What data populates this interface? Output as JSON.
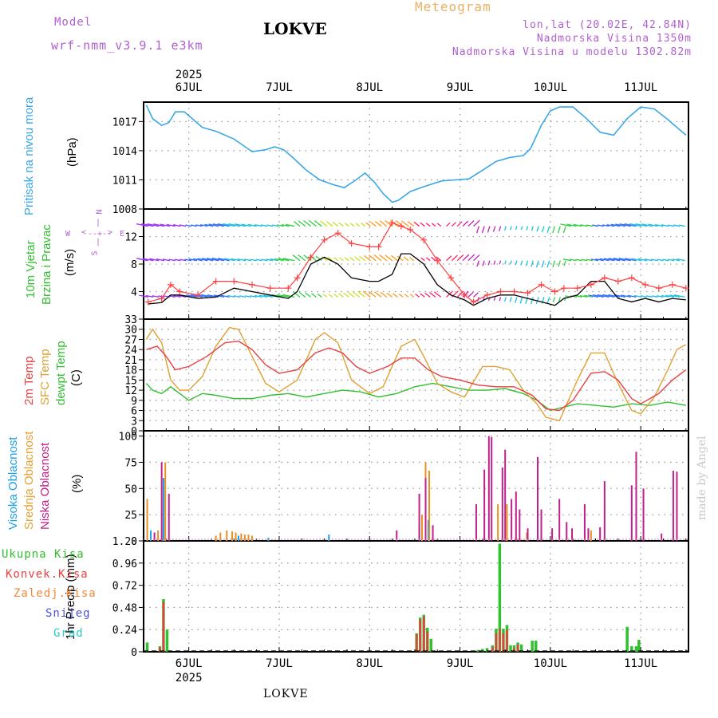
{
  "header": {
    "model_label": "Model",
    "model_name": "wrf-nmm_v3.9.1 e3km",
    "station": "LOKVE",
    "product": "Meteogram",
    "coords": "lon,lat (20.02E, 42.84N)",
    "altitude": "Nadmorska Visina 1350m",
    "model_altitude": "Nadmorska Visina u modelu 1302.82m",
    "watermark": "made by Angel",
    "footer": "LOKVE"
  },
  "axis": {
    "year": "2025",
    "days": [
      "6JUL",
      "7JUL",
      "8JUL",
      "9JUL",
      "10JUL",
      "11JUL"
    ]
  },
  "labels": {
    "pressure": [
      "Pritisak na nivou mora",
      "(hPa)"
    ],
    "wind": [
      "10m Vjetar",
      "Brzina i Pravac",
      "(m/s)"
    ],
    "wind_compass": {
      "n": "N",
      "s": "S",
      "w": "W",
      "e": "E",
      "v": "v",
      "x": "<",
      "y": ">"
    },
    "temp": [
      "2m Temp",
      "SFC Temp",
      "dewpt Temp",
      "(C)"
    ],
    "cloud": [
      "Visoka Oblacnost",
      "Srednja Oblacnost",
      "Niska Oblacnost",
      "(%)"
    ],
    "precip_axis": "1hr Precip (mm)",
    "precip_legend": [
      "Ukupna Kisa",
      "Konvek.Kisa",
      "Zaledj.Kisa",
      "Snijeg",
      "Grad"
    ]
  },
  "colors": {
    "pressure": "#3aa7e8",
    "wind_speed": "#ff4040",
    "gust": "#000000",
    "t2m": "#e84040",
    "tsfc": "#e0a030",
    "dewpt": "#30c030",
    "high_cloud": "#1aa0e8",
    "mid_cloud": "#e89020",
    "low_cloud": "#c0208a",
    "precip_total": "#30c030",
    "precip_conv": "#e84040",
    "precip_freeze": "#f08a3c",
    "precip_snow": "#5050e0",
    "precip_hail": "#30c8c0",
    "purple": "#b060d0"
  },
  "chart_data": [
    {
      "type": "line",
      "name": "pressure",
      "title": "Pritisak na nivou mora (hPa)",
      "x_unit": "day (5.5 = 5 JUL 12h, 6.0 = 6 JUL 00h)",
      "ylim": [
        1008,
        1019
      ],
      "yticks": [
        1008,
        1011,
        1014,
        1017
      ],
      "series": [
        {
          "name": "MSLP",
          "x": [
            5.53,
            5.6,
            5.7,
            5.78,
            5.85,
            5.95,
            6.05,
            6.15,
            6.3,
            6.5,
            6.7,
            6.85,
            6.95,
            7.05,
            7.15,
            7.3,
            7.45,
            7.6,
            7.72,
            7.85,
            7.95,
            8.05,
            8.15,
            8.25,
            8.32,
            8.45,
            8.6,
            8.8,
            8.95,
            9.1,
            9.25,
            9.4,
            9.55,
            9.7,
            9.78,
            9.9,
            10.0,
            10.1,
            10.25,
            10.4,
            10.55,
            10.7,
            10.85,
            11.0,
            11.15,
            11.3,
            11.4,
            11.5
          ],
          "values": [
            1018.7,
            1017.3,
            1016.6,
            1016.9,
            1018.0,
            1018.0,
            1017.2,
            1016.4,
            1016.0,
            1015.2,
            1013.9,
            1014.1,
            1014.4,
            1014.1,
            1013.3,
            1012.0,
            1011.0,
            1010.5,
            1010.2,
            1011.0,
            1011.7,
            1010.8,
            1009.6,
            1008.7,
            1008.9,
            1009.8,
            1010.3,
            1010.9,
            1011.0,
            1011.1,
            1012.0,
            1012.9,
            1013.3,
            1013.5,
            1014.2,
            1016.6,
            1018.1,
            1018.5,
            1018.5,
            1017.3,
            1015.9,
            1015.6,
            1017.3,
            1018.5,
            1018.3,
            1017.2,
            1016.4,
            1015.6
          ]
        }
      ]
    },
    {
      "type": "line",
      "name": "wind",
      "title": "10m Vjetar Brzina i Pravac (m/s)",
      "ylim": [
        0,
        16
      ],
      "yticks": [
        4,
        8,
        12
      ],
      "series": [
        {
          "name": "speed",
          "x": [
            5.55,
            5.7,
            5.8,
            5.9,
            6.1,
            6.3,
            6.5,
            6.7,
            6.9,
            7.1,
            7.2,
            7.35,
            7.5,
            7.65,
            7.8,
            8.0,
            8.1,
            8.25,
            8.35,
            8.45,
            8.6,
            8.75,
            8.9,
            9.05,
            9.15,
            9.3,
            9.45,
            9.6,
            9.75,
            9.9,
            10.05,
            10.15,
            10.3,
            10.45,
            10.6,
            10.75,
            10.9,
            11.05,
            11.2,
            11.35,
            11.5
          ],
          "values": [
            2.5,
            3.0,
            5.0,
            4.0,
            3.5,
            5.5,
            5.5,
            5.0,
            4.5,
            4.5,
            6.0,
            9.0,
            11.5,
            12.5,
            11.0,
            10.5,
            10.5,
            14.0,
            13.5,
            13.0,
            11.5,
            8.5,
            6.0,
            3.5,
            2.5,
            3.5,
            4.0,
            4.0,
            3.8,
            5.0,
            4.0,
            4.5,
            4.5,
            5.0,
            6.0,
            5.5,
            6.0,
            5.0,
            4.5,
            5.0,
            4.5
          ]
        },
        {
          "name": "gust",
          "x": [
            5.55,
            5.7,
            5.8,
            5.9,
            6.1,
            6.3,
            6.5,
            6.7,
            6.9,
            7.1,
            7.2,
            7.35,
            7.5,
            7.65,
            7.8,
            8.0,
            8.1,
            8.25,
            8.35,
            8.45,
            8.6,
            8.75,
            8.9,
            9.05,
            9.15,
            9.3,
            9.45,
            9.6,
            9.75,
            9.9,
            10.05,
            10.15,
            10.3,
            10.45,
            10.6,
            10.75,
            10.9,
            11.05,
            11.2,
            11.35,
            11.5
          ],
          "values": [
            2.2,
            2.4,
            3.5,
            3.5,
            3.0,
            3.2,
            4.5,
            4.0,
            3.5,
            3.0,
            4.0,
            8.0,
            9.0,
            8.0,
            6.0,
            5.5,
            5.5,
            6.5,
            9.5,
            9.5,
            8.0,
            5.0,
            3.5,
            2.8,
            2.0,
            3.0,
            3.5,
            3.5,
            3.0,
            2.5,
            2.0,
            3.0,
            3.5,
            5.5,
            5.5,
            3.0,
            2.5,
            3.0,
            2.5,
            3.0,
            2.8
          ]
        }
      ]
    },
    {
      "type": "line",
      "name": "temperature",
      "title": "2m Temp / SFC Temp / dewpt Temp (C)",
      "ylim": [
        0,
        33
      ],
      "yticks": [
        0,
        3,
        6,
        9,
        12,
        15,
        18,
        21,
        24,
        27,
        30,
        33
      ],
      "series": [
        {
          "name": "2m Temp",
          "x": [
            5.53,
            5.65,
            5.75,
            5.85,
            6.0,
            6.2,
            6.4,
            6.55,
            6.7,
            6.85,
            7.0,
            7.2,
            7.4,
            7.55,
            7.7,
            7.85,
            8.0,
            8.2,
            8.35,
            8.5,
            8.65,
            8.8,
            9.0,
            9.2,
            9.4,
            9.6,
            9.8,
            9.95,
            10.1,
            10.25,
            10.45,
            10.6,
            10.75,
            10.9,
            11.0,
            11.2,
            11.35,
            11.5
          ],
          "values": [
            24,
            25,
            22,
            18,
            19,
            22,
            26,
            26.5,
            24,
            19.5,
            17,
            18,
            23,
            24.5,
            23,
            19,
            17,
            19,
            21.5,
            21.5,
            18,
            16,
            15,
            13.5,
            13,
            13,
            10.5,
            6.5,
            6,
            9,
            17,
            17.5,
            15,
            9.5,
            8,
            11,
            15,
            18
          ]
        },
        {
          "name": "SFC Temp",
          "x": [
            5.53,
            5.6,
            5.7,
            5.8,
            5.9,
            6.0,
            6.15,
            6.3,
            6.45,
            6.55,
            6.7,
            6.85,
            7.0,
            7.2,
            7.4,
            7.5,
            7.65,
            7.8,
            8.0,
            8.15,
            8.35,
            8.5,
            8.6,
            8.75,
            8.9,
            9.05,
            9.25,
            9.4,
            9.55,
            9.7,
            9.85,
            9.95,
            10.1,
            10.3,
            10.45,
            10.6,
            10.75,
            10.9,
            11.0,
            11.15,
            11.3,
            11.4,
            11.5
          ],
          "values": [
            27,
            30,
            26,
            15,
            12,
            12,
            16,
            25,
            30.5,
            30,
            22,
            14,
            11.5,
            15,
            27,
            29,
            26,
            15,
            11,
            13,
            25,
            27,
            22,
            14,
            11.5,
            10,
            19,
            19,
            18,
            12,
            8,
            4,
            3,
            15,
            23,
            23,
            14,
            6,
            5,
            10,
            18,
            24,
            25.5
          ]
        },
        {
          "name": "dewpt Temp",
          "x": [
            5.53,
            5.6,
            5.7,
            5.8,
            5.9,
            6.0,
            6.15,
            6.3,
            6.5,
            6.7,
            6.9,
            7.1,
            7.3,
            7.5,
            7.7,
            7.9,
            8.1,
            8.3,
            8.5,
            8.7,
            8.9,
            9.1,
            9.3,
            9.5,
            9.7,
            9.85,
            10.0,
            10.15,
            10.3,
            10.5,
            10.7,
            10.9,
            11.1,
            11.3,
            11.5
          ],
          "values": [
            14,
            12,
            11,
            13,
            11,
            9,
            11,
            10.5,
            9.5,
            9.5,
            10.5,
            11,
            10,
            11,
            12,
            11.5,
            10,
            11,
            13,
            14,
            13,
            12,
            12,
            12.5,
            11,
            9,
            6,
            7,
            8,
            7.5,
            7,
            8,
            7.5,
            8.5,
            7.5
          ]
        }
      ]
    },
    {
      "type": "bar",
      "name": "cloud_cover",
      "title": "Visoka / Srednja / Niska Oblacnost (%)",
      "ylim": [
        0,
        105
      ],
      "yticks": [
        0,
        25,
        50,
        75,
        100
      ],
      "series": [
        {
          "name": "Visoka Oblacnost",
          "x": [
            5.58,
            5.72,
            6.55,
            6.88,
            7.55,
            8.55,
            8.65
          ],
          "values": [
            10,
            60,
            5,
            3,
            6,
            15,
            20
          ]
        },
        {
          "name": "Srednja Oblacnost",
          "x": [
            5.54,
            5.66,
            5.74,
            6.3,
            6.35,
            6.42,
            6.48,
            6.52,
            6.58,
            6.62,
            6.66,
            6.7,
            8.58,
            8.62,
            8.66,
            9.42,
            9.52,
            9.74,
            10.45
          ],
          "values": [
            40,
            10,
            75,
            5,
            8,
            10,
            9,
            8,
            7,
            6,
            6,
            5,
            25,
            75,
            67,
            35,
            35,
            8,
            10
          ]
        },
        {
          "name": "Niska Oblacnost",
          "x": [
            5.62,
            5.7,
            5.78,
            8.3,
            8.55,
            8.62,
            8.7,
            9.18,
            9.27,
            9.32,
            9.35,
            9.47,
            9.5,
            9.57,
            9.62,
            9.66,
            9.75,
            9.86,
            9.9,
            10.02,
            10.1,
            10.18,
            10.24,
            10.38,
            10.42,
            10.55,
            10.6,
            10.9,
            10.95,
            11.03,
            11.23,
            11.36,
            11.4
          ],
          "values": [
            8,
            75,
            45,
            10,
            45,
            60,
            15,
            35,
            68,
            100,
            99,
            70,
            87,
            40,
            47,
            30,
            12,
            80,
            30,
            12,
            40,
            18,
            12,
            35,
            12,
            13,
            57,
            53,
            85,
            50,
            7,
            67,
            66
          ]
        }
      ]
    },
    {
      "type": "bar",
      "name": "precipitation",
      "title": "1hr Precip (mm)",
      "ylim": [
        0,
        1.2
      ],
      "yticks": [
        0,
        0.24,
        0.48,
        0.72,
        0.96,
        1.2
      ],
      "series": [
        {
          "name": "Ukupna Kisa",
          "x": [
            5.54,
            5.68,
            5.72,
            5.76,
            8.52,
            8.56,
            8.6,
            8.64,
            8.68,
            9.2,
            9.25,
            9.3,
            9.36,
            9.4,
            9.44,
            9.48,
            9.52,
            9.56,
            9.6,
            9.64,
            9.68,
            9.8,
            9.84,
            10.85,
            10.9,
            10.95,
            10.98
          ],
          "values": [
            0.1,
            0.06,
            0.57,
            0.24,
            0.2,
            0.37,
            0.4,
            0.26,
            0.14,
            0.02,
            0.03,
            0.04,
            0.07,
            0.25,
            1.17,
            0.25,
            0.29,
            0.07,
            0.07,
            0.1,
            0.08,
            0.12,
            0.12,
            0.27,
            0.06,
            0.06,
            0.13
          ]
        },
        {
          "name": "Konvek.Kisa",
          "x": [
            5.68,
            5.72,
            8.52,
            8.56,
            8.6,
            8.64,
            9.36,
            9.4,
            9.44,
            9.48,
            9.52,
            9.6,
            9.64
          ],
          "values": [
            0.05,
            0.54,
            0.19,
            0.35,
            0.38,
            0.22,
            0.05,
            0.2,
            0.25,
            0.2,
            0.24,
            0.04,
            0.08
          ]
        }
      ]
    }
  ]
}
